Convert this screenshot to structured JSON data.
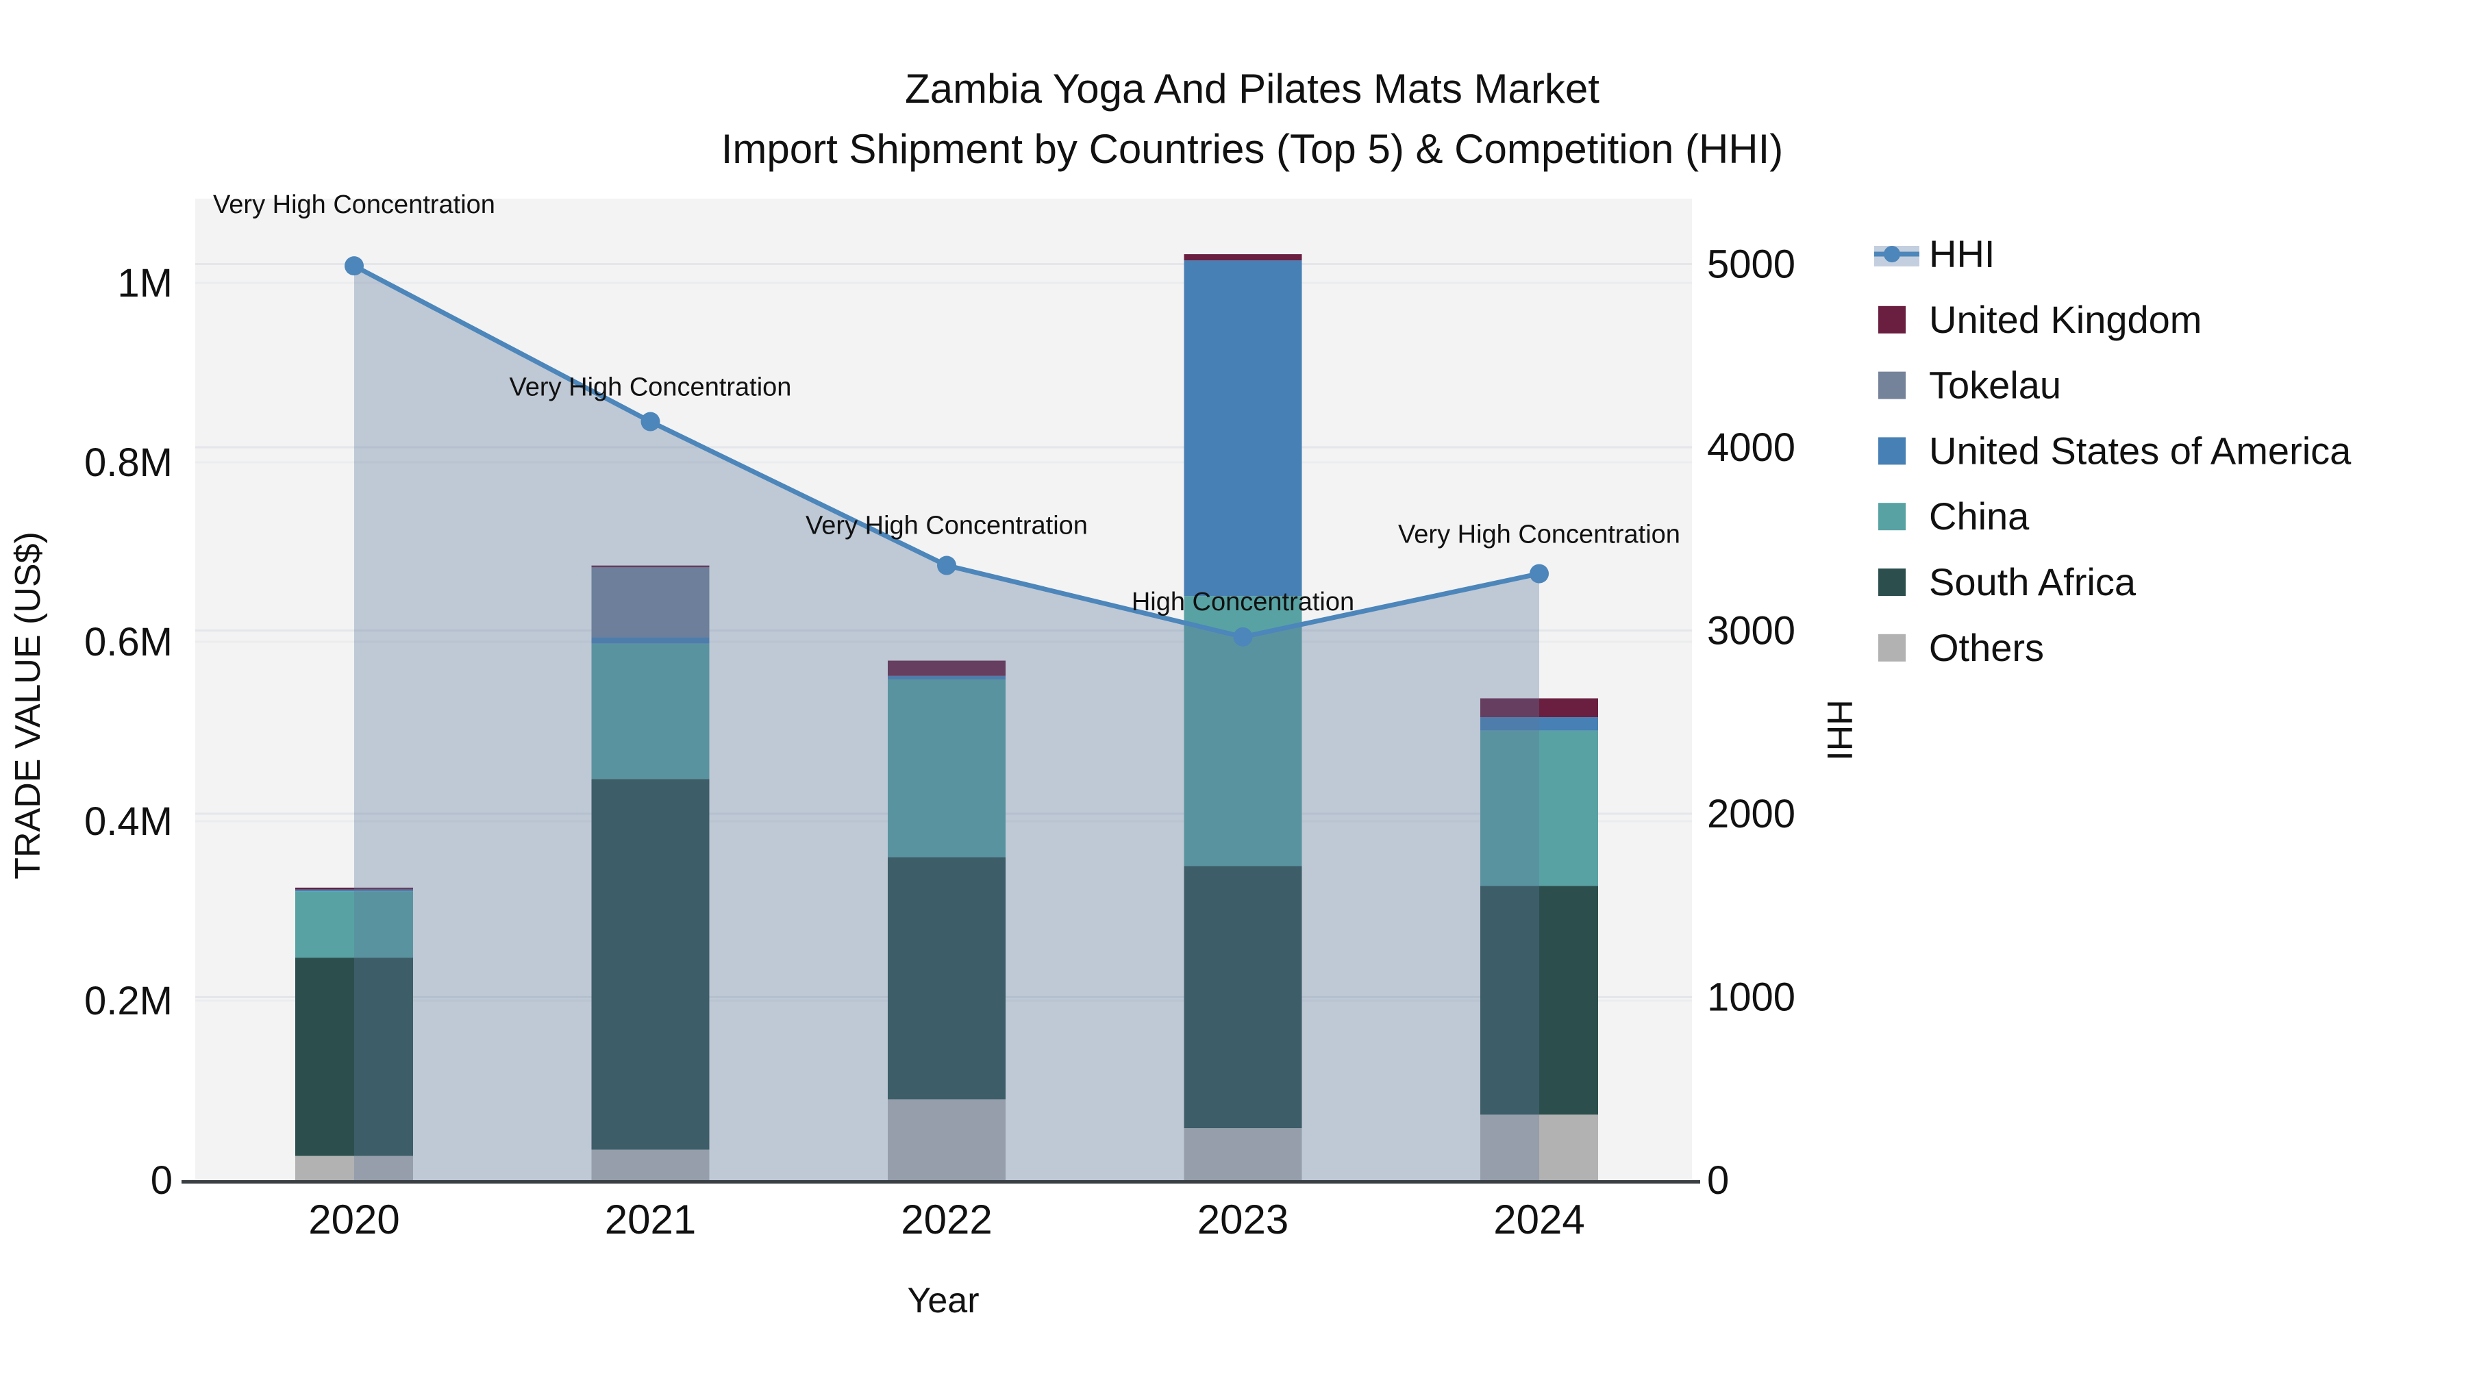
{
  "title": {
    "line1": "Zambia Yoga And Pilates Mats Market",
    "line2": "Import Shipment by Countries (Top 5) & Competition (HHI)"
  },
  "axes": {
    "left": {
      "title": "TRADE VALUE (US$)",
      "ticks": [
        {
          "value": 0,
          "label": "0"
        },
        {
          "value": 200000,
          "label": "0.2M"
        },
        {
          "value": 400000,
          "label": "0.4M"
        },
        {
          "value": 600000,
          "label": "0.6M"
        },
        {
          "value": 800000,
          "label": "0.8M"
        },
        {
          "value": 1000000,
          "label": "1M"
        }
      ]
    },
    "right": {
      "title": "HHI",
      "ticks": [
        {
          "value": 0,
          "label": "0"
        },
        {
          "value": 1000,
          "label": "1000"
        },
        {
          "value": 2000,
          "label": "2000"
        },
        {
          "value": 3000,
          "label": "3000"
        },
        {
          "value": 4000,
          "label": "4000"
        },
        {
          "value": 5000,
          "label": "5000"
        }
      ]
    },
    "x": {
      "title": "Year"
    }
  },
  "legend": [
    {
      "label": "HHI",
      "type": "line",
      "color": "#4c86ba",
      "fill": "#c3cfdf"
    },
    {
      "label": "United Kingdom",
      "type": "square",
      "color": "#6a1f40"
    },
    {
      "label": "Tokelau",
      "type": "square",
      "color": "#75839a"
    },
    {
      "label": "United States of America",
      "type": "square",
      "color": "#4680b4"
    },
    {
      "label": "China",
      "type": "square",
      "color": "#58a2a3"
    },
    {
      "label": "South Africa",
      "type": "square",
      "color": "#2c4f4e"
    },
    {
      "label": "Others",
      "type": "square",
      "color": "#b2b2b2"
    }
  ],
  "chart_data": {
    "type": "bar",
    "subtype": "stacked-bars-with-line",
    "categories": [
      "2020",
      "2021",
      "2022",
      "2023",
      "2024"
    ],
    "series": [
      {
        "name": "Others",
        "color": "#b2b2b2",
        "values": [
          27000,
          34000,
          90000,
          58000,
          73000
        ]
      },
      {
        "name": "South Africa",
        "color": "#2c4f4e",
        "values": [
          221000,
          413000,
          270000,
          292000,
          255000
        ]
      },
      {
        "name": "China",
        "color": "#58a2a3",
        "values": [
          74000,
          151000,
          198000,
          301000,
          173000
        ]
      },
      {
        "name": "United States of America",
        "color": "#4680b4",
        "values": [
          2000,
          7000,
          4000,
          374000,
          15000
        ]
      },
      {
        "name": "Tokelau",
        "color": "#75839a",
        "values": [
          0,
          78000,
          0,
          0,
          0
        ]
      },
      {
        "name": "United Kingdom",
        "color": "#6a1f40",
        "values": [
          2000,
          2000,
          17000,
          7000,
          21000
        ]
      }
    ],
    "line_series": {
      "name": "HHI",
      "color": "#4c86ba",
      "area_fill": "rgba(95,120,155,0.35)",
      "values": [
        4990,
        4140,
        3355,
        2965,
        3310
      ],
      "annotations": [
        "Very High Concentration",
        "Very High Concentration",
        "Very High Concentration",
        "High Concentration",
        "Very High Concentration"
      ]
    },
    "title": "Zambia Yoga And Pilates Mats Market — Import Shipment by Countries (Top 5) & Competition (HHI)",
    "xlabel": "Year",
    "ylabel": "TRADE VALUE (US$)",
    "ylabel_right": "HHI",
    "ylim_left": [
      0,
      1094000
    ],
    "ylim_right": [
      0,
      5360
    ],
    "grid": true,
    "legend_position": "right"
  }
}
